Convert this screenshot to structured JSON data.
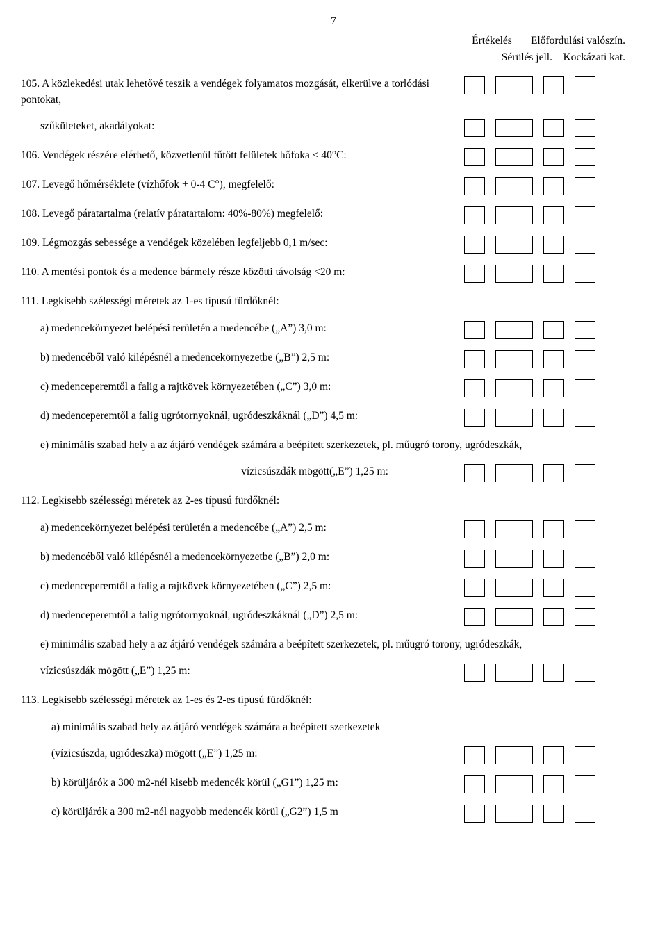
{
  "page_number": "7",
  "header": {
    "line1_left": "Értékelés",
    "line1_right": "Előfordulási valószín.",
    "line2_left": "Sérülés jell.",
    "line2_right": "Kockázati kat."
  },
  "items": [
    {
      "num": "105.",
      "text": "A közlekedési utak lehetővé teszik a vendégek folyamatos mozgását, elkerülve a torlódási pontokat,"
    },
    {
      "indent": 1,
      "text": "szűkületeket, akadályokat:"
    },
    {
      "num": "106.",
      "text": "Vendégek részére elérhető, közvetlenül fűtött felületek hőfoka < 40°C:"
    },
    {
      "num": "107.",
      "text": "Levegő hőmérséklete (vízhőfok + 0-4 C°), megfelelő:"
    },
    {
      "num": "108.",
      "text": "Levegő páratartalma (relatív páratartalom: 40%-80%) megfelelő:"
    },
    {
      "num": "109.",
      "text": "Légmozgás sebessége a vendégek közelében legfeljebb 0,1 m/sec:"
    },
    {
      "num": "110.",
      "text": "A mentési pontok és a medence bármely része közötti távolság <20 m:"
    },
    {
      "num": "111.",
      "text": "Legkisebb szélességi méretek az 1-es típusú fürdőknél:",
      "noboxes": true
    },
    {
      "indent": 1,
      "text": "a) medencekörnyezet belépési területén  a medencébe („A”) 3,0 m:"
    },
    {
      "indent": 1,
      "text": "b) medencéből való kilépésnél a medencekörnyezetbe („B”) 2,5 m:"
    },
    {
      "indent": 1,
      "text": "c) medenceperemtől a falig a rajtkövek környezetében („C”) 3,0 m:"
    },
    {
      "indent": 1,
      "text": "d) medenceperemtől a falig ugrótornyoknál, ugródeszkáknál („D”) 4,5 m:"
    },
    {
      "indent": 1,
      "text": "e)  minimális szabad hely a az átjáró vendégek számára a beépített szerkezetek, pl. műugró torony, ugródeszkák,",
      "noboxes": true,
      "full": true
    },
    {
      "center": true,
      "text": "vízicsúszdák mögött(„E”) 1,25 m:"
    },
    {
      "num": "112.",
      "text": "Legkisebb szélességi méretek az 2-es típusú fürdőknél:",
      "noboxes": true
    },
    {
      "indent": 1,
      "text": "a) medencekörnyezet belépési területén  a medencébe („A”) 2,5 m:"
    },
    {
      "indent": 1,
      "text": "b) medencéből való kilépésnél a medencekörnyezetbe („B”) 2,0 m:"
    },
    {
      "indent": 1,
      "text": "c) medenceperemtől a falig a rajtkövek környezetében („C”) 2,5 m:"
    },
    {
      "indent": 1,
      "text": "d) medenceperemtől a falig ugrótornyoknál, ugródeszkáknál („D”) 2,5 m:"
    },
    {
      "indent": 1,
      "text": "e)  minimális szabad hely a az átjáró vendégek számára a beépített szerkezetek, pl. műugró torony, ugródeszkák,",
      "noboxes": true,
      "full": true
    },
    {
      "indent": 1,
      "text": "vízicsúszdák mögött („E”) 1,25 m:"
    },
    {
      "num": "113.",
      "text": "Legkisebb szélességi méretek az 1-es és 2-es típusú fürdőknél:",
      "noboxes": true
    },
    {
      "indent": 2,
      "text": "a) minimális szabad hely az átjáró vendégek számára a beépített szerkezetek",
      "noboxes": true
    },
    {
      "indent": 2,
      "text": " (vízicsúszda, ugródeszka) mögött („E”) 1,25 m:"
    },
    {
      "indent": 2,
      "text": "b) körüljárók a 300 m2-nél kisebb medencék körül („G1”) 1,25 m:"
    },
    {
      "indent": 2,
      "text": "c) körüljárók a 300 m2-nél nagyobb medencék körül („G2”) 1,5 m"
    }
  ],
  "boxes": {
    "count": 4,
    "wide_index": 1
  }
}
